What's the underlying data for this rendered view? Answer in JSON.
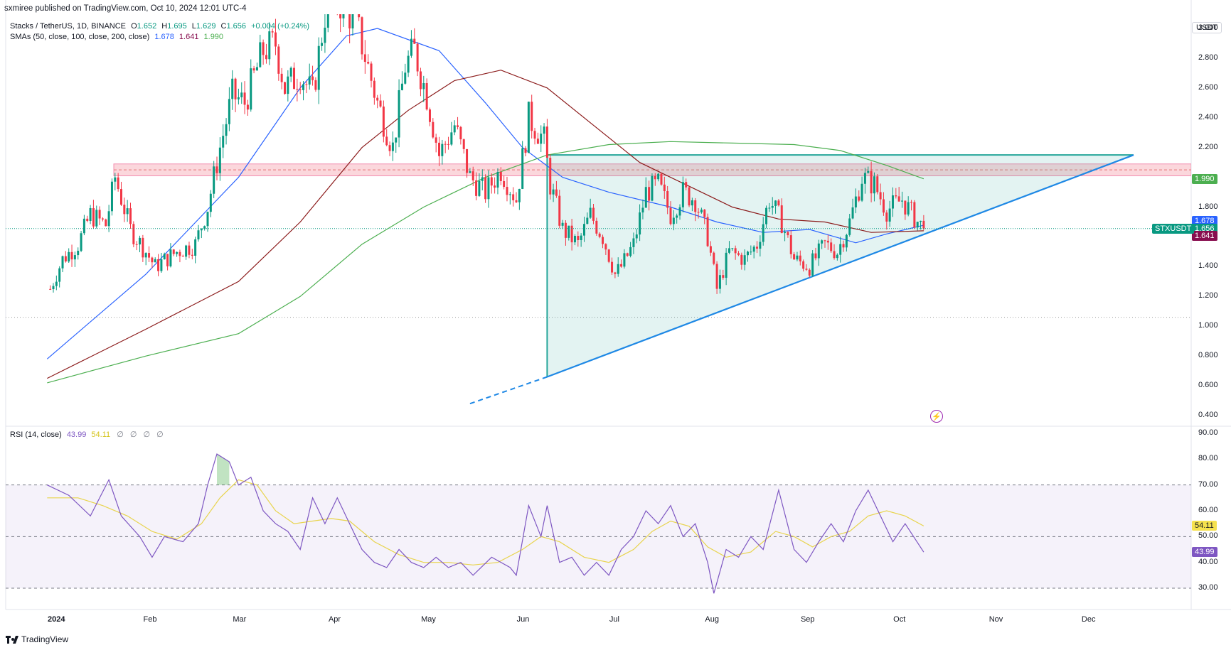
{
  "header": {
    "publish_line": "sxmiree published on TradingView.com, Oct 10, 2024 12:01 UTC-4",
    "symbol_line": "Stacks / TetherUS, 1D, BINANCE",
    "ohlc": {
      "o_label": "O",
      "o": "1.652",
      "h_label": "H",
      "h": "1.695",
      "l_label": "L",
      "l": "1.629",
      "c_label": "C",
      "c": "1.656",
      "change": "+0.004 (+0.24%)"
    },
    "sma_label": "SMAs (50, close, 100, close, 200, close)",
    "sma_values": [
      "1.678",
      "1.641",
      "1.990"
    ],
    "rsi_label": "RSI (14, close)",
    "rsi_values": [
      "43.99",
      "54.11"
    ],
    "rsi_icons": [
      "∅",
      "∅",
      "∅",
      "∅"
    ],
    "currency": "USDT",
    "brand": "TradingView"
  },
  "colors": {
    "up": "#089981",
    "down": "#f23645",
    "sma50": "#2962ff",
    "sma100": "#8b1a1a",
    "sma200": "#4caf50",
    "rsi": "#7e57c2",
    "rsi_ma": "#e8d44d",
    "triangle": "#26a69a",
    "support": "#1e88e5",
    "zone": "#f7b6bf"
  },
  "chart_data": [
    {
      "type": "candlestick",
      "title": "Stacks / TetherUS, 1D, BINANCE",
      "ylim": [
        0.3,
        3.1
      ],
      "yticks": [
        {
          "v": 3.0,
          "label": "3.000"
        },
        {
          "v": 2.8,
          "label": "2.800"
        },
        {
          "v": 2.6,
          "label": "2.600"
        },
        {
          "v": 2.4,
          "label": "2.400"
        },
        {
          "v": 2.2,
          "label": "2.200"
        },
        {
          "v": 1.8,
          "label": "1.800"
        },
        {
          "v": 1.4,
          "label": "1.400"
        },
        {
          "v": 1.2,
          "label": "1.200"
        },
        {
          "v": 1.0,
          "label": "1.000"
        },
        {
          "v": 0.8,
          "label": "0.800"
        },
        {
          "v": 0.6,
          "label": "0.600"
        },
        {
          "v": 0.4,
          "label": "0.400"
        }
      ],
      "months": [
        "2024",
        "Feb",
        "Mar",
        "Apr",
        "May",
        "Jun",
        "Jul",
        "Aug",
        "Sep",
        "Oct",
        "Nov",
        "Dec"
      ],
      "month_start_days": [
        0,
        31,
        60,
        91,
        121,
        152,
        182,
        213,
        244,
        274,
        305,
        335
      ],
      "last_day": 282,
      "anchors": [
        {
          "d": -2,
          "v": 1.2
        },
        {
          "d": 3,
          "v": 1.45
        },
        {
          "d": 8,
          "v": 1.55
        },
        {
          "d": 12,
          "v": 1.75
        },
        {
          "d": 17,
          "v": 1.68
        },
        {
          "d": 20,
          "v": 2.0
        },
        {
          "d": 25,
          "v": 1.65
        },
        {
          "d": 30,
          "v": 1.5
        },
        {
          "d": 33,
          "v": 1.4
        },
        {
          "d": 40,
          "v": 1.5
        },
        {
          "d": 46,
          "v": 1.55
        },
        {
          "d": 50,
          "v": 1.8
        },
        {
          "d": 54,
          "v": 2.2
        },
        {
          "d": 58,
          "v": 2.55
        },
        {
          "d": 62,
          "v": 2.5
        },
        {
          "d": 68,
          "v": 2.85
        },
        {
          "d": 72,
          "v": 2.9
        },
        {
          "d": 75,
          "v": 2.6
        },
        {
          "d": 80,
          "v": 2.7
        },
        {
          "d": 84,
          "v": 2.55
        },
        {
          "d": 88,
          "v": 3.1
        },
        {
          "d": 92,
          "v": 3.2
        },
        {
          "d": 98,
          "v": 3.05
        },
        {
          "d": 105,
          "v": 2.5
        },
        {
          "d": 110,
          "v": 2.2
        },
        {
          "d": 114,
          "v": 2.75
        },
        {
          "d": 117,
          "v": 2.85
        },
        {
          "d": 121,
          "v": 2.55
        },
        {
          "d": 125,
          "v": 2.15
        },
        {
          "d": 130,
          "v": 2.35
        },
        {
          "d": 135,
          "v": 2.0
        },
        {
          "d": 140,
          "v": 1.9
        },
        {
          "d": 145,
          "v": 2.05
        },
        {
          "d": 150,
          "v": 1.85
        },
        {
          "d": 154,
          "v": 2.4
        },
        {
          "d": 159,
          "v": 2.25
        },
        {
          "d": 161,
          "v": 1.95
        },
        {
          "d": 165,
          "v": 1.65
        },
        {
          "d": 170,
          "v": 1.55
        },
        {
          "d": 174,
          "v": 1.75
        },
        {
          "d": 178,
          "v": 1.6
        },
        {
          "d": 182,
          "v": 1.35
        },
        {
          "d": 184,
          "v": 1.4
        },
        {
          "d": 188,
          "v": 1.55
        },
        {
          "d": 192,
          "v": 1.9
        },
        {
          "d": 196,
          "v": 1.95
        },
        {
          "d": 200,
          "v": 1.75
        },
        {
          "d": 204,
          "v": 1.9
        },
        {
          "d": 208,
          "v": 1.85
        },
        {
          "d": 212,
          "v": 1.6
        },
        {
          "d": 215,
          "v": 1.25
        },
        {
          "d": 219,
          "v": 1.5
        },
        {
          "d": 224,
          "v": 1.45
        },
        {
          "d": 228,
          "v": 1.55
        },
        {
          "d": 232,
          "v": 1.85
        },
        {
          "d": 236,
          "v": 1.7
        },
        {
          "d": 240,
          "v": 1.45
        },
        {
          "d": 245,
          "v": 1.4
        },
        {
          "d": 250,
          "v": 1.55
        },
        {
          "d": 254,
          "v": 1.5
        },
        {
          "d": 258,
          "v": 1.7
        },
        {
          "d": 262,
          "v": 2.0
        },
        {
          "d": 266,
          "v": 1.95
        },
        {
          "d": 270,
          "v": 1.78
        },
        {
          "d": 275,
          "v": 1.85
        },
        {
          "d": 280,
          "v": 1.7
        },
        {
          "d": 282,
          "v": 1.656
        }
      ],
      "series": [
        {
          "name": "SMA 50",
          "points": [
            [
              -2,
              0.78
            ],
            [
              30,
              1.35
            ],
            [
              60,
              2.0
            ],
            [
              80,
              2.6
            ],
            [
              95,
              2.95
            ],
            [
              105,
              3.0
            ],
            [
              125,
              2.85
            ],
            [
              140,
              2.5
            ],
            [
              152,
              2.2
            ],
            [
              165,
              2.0
            ],
            [
              180,
              1.9
            ],
            [
              200,
              1.8
            ],
            [
              215,
              1.7
            ],
            [
              230,
              1.63
            ],
            [
              245,
              1.65
            ],
            [
              260,
              1.56
            ],
            [
              270,
              1.62
            ],
            [
              282,
              1.678
            ]
          ]
        },
        {
          "name": "SMA 100",
          "points": [
            [
              -2,
              0.65
            ],
            [
              30,
              0.98
            ],
            [
              60,
              1.3
            ],
            [
              80,
              1.7
            ],
            [
              100,
              2.2
            ],
            [
              115,
              2.45
            ],
            [
              130,
              2.65
            ],
            [
              145,
              2.72
            ],
            [
              160,
              2.6
            ],
            [
              175,
              2.35
            ],
            [
              190,
              2.1
            ],
            [
              205,
              1.95
            ],
            [
              220,
              1.8
            ],
            [
              235,
              1.72
            ],
            [
              250,
              1.7
            ],
            [
              265,
              1.63
            ],
            [
              282,
              1.641
            ]
          ]
        },
        {
          "name": "SMA 200",
          "points": [
            [
              -2,
              0.62
            ],
            [
              30,
              0.8
            ],
            [
              60,
              0.95
            ],
            [
              80,
              1.2
            ],
            [
              100,
              1.55
            ],
            [
              120,
              1.8
            ],
            [
              140,
              2.0
            ],
            [
              160,
              2.15
            ],
            [
              180,
              2.22
            ],
            [
              200,
              2.24
            ],
            [
              220,
              2.23
            ],
            [
              240,
              2.22
            ],
            [
              255,
              2.18
            ],
            [
              270,
              2.08
            ],
            [
              282,
              1.99
            ]
          ]
        }
      ],
      "support_zone": [
        2.01,
        2.09
      ],
      "support_dash": 2.05,
      "low_dotted": 1.06,
      "current_price": 1.656,
      "pattern": {
        "name": "ascending triangle",
        "top_line": [
          [
            160,
            2.15
          ],
          [
            350,
            2.15
          ]
        ],
        "support_line": [
          [
            160,
            0.66
          ],
          [
            350,
            2.15
          ]
        ],
        "support_ext": [
          [
            135,
            0.48
          ],
          [
            160,
            0.66
          ]
        ],
        "vertical": [
          [
            160,
            2.15
          ],
          [
            160,
            0.66
          ]
        ],
        "upper_drop": [
          [
            158,
            2.1
          ],
          [
            160,
            2.15
          ]
        ]
      },
      "labels": [
        {
          "name": "SMA 200",
          "value": "1.990",
          "color": "#4caf50",
          "v": 1.99
        },
        {
          "name": "SMA 50",
          "value": "1.678",
          "color": "#2962ff",
          "v": 1.678
        },
        {
          "name": "Price",
          "value": "1.656",
          "color": "#089981",
          "v": 1.656
        },
        {
          "name": "SMA 100",
          "value": "1.641",
          "color": "#880e4f",
          "v": 1.641
        }
      ],
      "symbol_tag": "STXUSDT"
    },
    {
      "type": "line",
      "title": "RSI (14, close)",
      "ylim": [
        25,
        92
      ],
      "yticks": [
        {
          "v": 90,
          "label": "90.00"
        },
        {
          "v": 80,
          "label": "80.00"
        },
        {
          "v": 70,
          "label": "70.00"
        },
        {
          "v": 60,
          "label": "60.00"
        },
        {
          "v": 50,
          "label": "50.00"
        },
        {
          "v": 40,
          "label": "40.00"
        },
        {
          "v": 30,
          "label": "30.00"
        }
      ],
      "bands": [
        70,
        50,
        30
      ],
      "series": [
        {
          "name": "RSI",
          "points": [
            [
              -2,
              70
            ],
            [
              5,
              66
            ],
            [
              12,
              58
            ],
            [
              18,
              72
            ],
            [
              22,
              58
            ],
            [
              28,
              50
            ],
            [
              32,
              42
            ],
            [
              36,
              50
            ],
            [
              42,
              48
            ],
            [
              47,
              55
            ],
            [
              50,
              70
            ],
            [
              53,
              82
            ],
            [
              57,
              79
            ],
            [
              60,
              70
            ],
            [
              64,
              73
            ],
            [
              68,
              60
            ],
            [
              72,
              55
            ],
            [
              76,
              52
            ],
            [
              80,
              45
            ],
            [
              84,
              65
            ],
            [
              88,
              55
            ],
            [
              92,
              65
            ],
            [
              96,
              55
            ],
            [
              100,
              45
            ],
            [
              104,
              40
            ],
            [
              108,
              38
            ],
            [
              112,
              45
            ],
            [
              116,
              40
            ],
            [
              120,
              38
            ],
            [
              124,
              42
            ],
            [
              128,
              38
            ],
            [
              132,
              40
            ],
            [
              136,
              35
            ],
            [
              142,
              42
            ],
            [
              148,
              38
            ],
            [
              150,
              35
            ],
            [
              154,
              62
            ],
            [
              158,
              50
            ],
            [
              160,
              62
            ],
            [
              164,
              40
            ],
            [
              168,
              42
            ],
            [
              172,
              35
            ],
            [
              176,
              40
            ],
            [
              180,
              35
            ],
            [
              184,
              45
            ],
            [
              188,
              50
            ],
            [
              192,
              60
            ],
            [
              196,
              55
            ],
            [
              200,
              62
            ],
            [
              204,
              50
            ],
            [
              208,
              55
            ],
            [
              212,
              40
            ],
            [
              214,
              28
            ],
            [
              218,
              45
            ],
            [
              222,
              42
            ],
            [
              226,
              50
            ],
            [
              230,
              45
            ],
            [
              235,
              68
            ],
            [
              240,
              45
            ],
            [
              244,
              40
            ],
            [
              248,
              48
            ],
            [
              252,
              55
            ],
            [
              256,
              48
            ],
            [
              260,
              60
            ],
            [
              264,
              68
            ],
            [
              268,
              58
            ],
            [
              272,
              48
            ],
            [
              276,
              55
            ],
            [
              282,
              43.99
            ]
          ]
        },
        {
          "name": "RSI-based MA",
          "points": [
            [
              -2,
              65
            ],
            [
              8,
              65
            ],
            [
              16,
              62
            ],
            [
              24,
              58
            ],
            [
              32,
              52
            ],
            [
              40,
              49
            ],
            [
              48,
              55
            ],
            [
              54,
              65
            ],
            [
              60,
              72
            ],
            [
              66,
              70
            ],
            [
              72,
              60
            ],
            [
              78,
              55
            ],
            [
              84,
              56
            ],
            [
              90,
              57
            ],
            [
              96,
              56
            ],
            [
              104,
              48
            ],
            [
              112,
              43
            ],
            [
              120,
              40
            ],
            [
              128,
              40
            ],
            [
              136,
              39
            ],
            [
              144,
              40
            ],
            [
              152,
              45
            ],
            [
              158,
              50
            ],
            [
              164,
              48
            ],
            [
              172,
              42
            ],
            [
              180,
              40
            ],
            [
              188,
              45
            ],
            [
              194,
              52
            ],
            [
              200,
              56
            ],
            [
              206,
              54
            ],
            [
              212,
              46
            ],
            [
              218,
              42
            ],
            [
              226,
              44
            ],
            [
              234,
              52
            ],
            [
              240,
              50
            ],
            [
              246,
              46
            ],
            [
              252,
              50
            ],
            [
              258,
              52
            ],
            [
              264,
              58
            ],
            [
              270,
              60
            ],
            [
              276,
              58
            ],
            [
              282,
              54.11
            ]
          ]
        }
      ],
      "labels": [
        {
          "name": "RSI-based MA",
          "value": "54.11",
          "color": "#f5e14e",
          "v": 54.11
        },
        {
          "name": "RSI",
          "value": "43.99",
          "color": "#7e57c2",
          "v": 43.99
        }
      ]
    }
  ]
}
